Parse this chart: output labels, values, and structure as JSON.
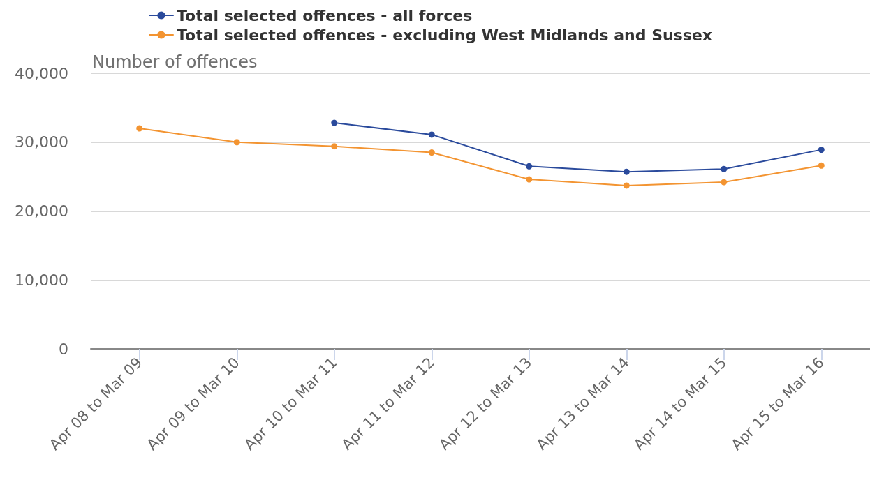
{
  "chart_data": {
    "type": "line",
    "ylabel": "Number of offences",
    "categories": [
      "Apr 08 to Mar 09",
      "Apr 09 to Mar 10",
      "Apr 10 to Mar 11",
      "Apr 11 to Mar 12",
      "Apr 12 to Mar 13",
      "Apr 13 to Mar 14",
      "Apr 14 to Mar 15",
      "Apr 15 to Mar 16"
    ],
    "series": [
      {
        "name": "Total selected offences - all forces",
        "color": "#2a4a9c",
        "values": [
          null,
          null,
          32800,
          31100,
          26500,
          25700,
          26100,
          28900
        ]
      },
      {
        "name": "Total selected offences - excluding West Midlands and Sussex",
        "color": "#f39431",
        "values": [
          32000,
          30000,
          29400,
          28500,
          24600,
          23700,
          24200,
          26600
        ]
      }
    ],
    "ylim": [
      0,
      40000
    ],
    "yticks": [
      {
        "value": 0,
        "label": "0"
      },
      {
        "value": 10000,
        "label": "10,000"
      },
      {
        "value": 20000,
        "label": "20,000"
      },
      {
        "value": 30000,
        "label": "30,000"
      },
      {
        "value": 40000,
        "label": "40,000"
      }
    ],
    "grid": "y",
    "legend": "top",
    "marker": "circle",
    "line_style": "solid"
  }
}
